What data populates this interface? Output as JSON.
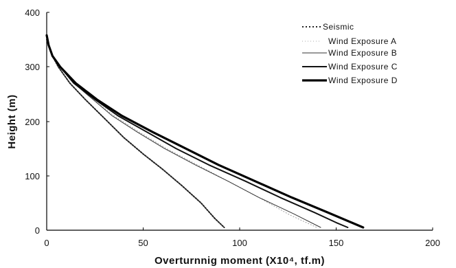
{
  "chart_data": {
    "type": "line",
    "title": "",
    "xlabel": "Overturnnig moment (X10⁴, tf.m)",
    "ylabel": "Height (m)",
    "xlim": [
      0,
      200
    ],
    "ylim": [
      0,
      400
    ],
    "x_ticks": [
      "0",
      "50",
      "100",
      "150",
      "200"
    ],
    "y_ticks": [
      "0",
      "100",
      "200",
      "300",
      "400"
    ],
    "grid": false,
    "legend_position": "top-right",
    "series": [
      {
        "name": "Seismic",
        "style": "dotted",
        "color": "#222222",
        "points": [
          [
            0,
            350
          ],
          [
            1,
            340
          ],
          [
            3,
            320
          ],
          [
            6,
            300
          ],
          [
            12,
            270
          ],
          [
            20,
            240
          ],
          [
            30,
            205
          ],
          [
            40,
            170
          ],
          [
            50,
            140
          ],
          [
            60,
            112
          ],
          [
            70,
            82
          ],
          [
            80,
            50
          ],
          [
            87,
            22
          ],
          [
            92,
            5
          ]
        ]
      },
      {
        "name": "Wind Exposure A",
        "style": "dotted-fine",
        "color": "#999999",
        "points": [
          [
            0,
            352
          ],
          [
            1,
            340
          ],
          [
            3,
            320
          ],
          [
            7,
            300
          ],
          [
            14,
            270
          ],
          [
            24,
            240
          ],
          [
            35,
            210
          ],
          [
            48,
            180
          ],
          [
            62,
            150
          ],
          [
            78,
            120
          ],
          [
            94,
            90
          ],
          [
            110,
            60
          ],
          [
            126,
            28
          ],
          [
            140,
            5
          ]
        ]
      },
      {
        "name": "Wind Exposure B",
        "style": "thin",
        "color": "#333333",
        "points": [
          [
            0,
            352
          ],
          [
            1,
            340
          ],
          [
            3,
            320
          ],
          [
            7,
            300
          ],
          [
            14,
            270
          ],
          [
            24,
            240
          ],
          [
            34,
            210
          ],
          [
            47,
            180
          ],
          [
            61,
            150
          ],
          [
            77,
            120
          ],
          [
            94,
            90
          ],
          [
            110,
            60
          ],
          [
            128,
            30
          ],
          [
            142,
            5
          ]
        ]
      },
      {
        "name": "Wind Exposure C",
        "style": "medium",
        "color": "#111111",
        "points": [
          [
            0,
            355
          ],
          [
            1,
            340
          ],
          [
            3,
            320
          ],
          [
            7,
            300
          ],
          [
            14,
            270
          ],
          [
            25,
            240
          ],
          [
            37,
            210
          ],
          [
            52,
            180
          ],
          [
            67,
            150
          ],
          [
            84,
            120
          ],
          [
            103,
            90
          ],
          [
            121,
            60
          ],
          [
            139,
            32
          ],
          [
            150,
            14
          ],
          [
            156,
            5
          ]
        ]
      },
      {
        "name": "Wind Exposure D",
        "style": "thick",
        "color": "#000000",
        "points": [
          [
            0,
            358
          ],
          [
            1,
            340
          ],
          [
            3,
            320
          ],
          [
            7,
            300
          ],
          [
            15,
            270
          ],
          [
            26,
            240
          ],
          [
            39,
            210
          ],
          [
            55,
            180
          ],
          [
            72,
            150
          ],
          [
            89,
            120
          ],
          [
            108,
            90
          ],
          [
            127,
            60
          ],
          [
            146,
            32
          ],
          [
            158,
            14
          ],
          [
            164,
            5
          ]
        ]
      }
    ]
  }
}
